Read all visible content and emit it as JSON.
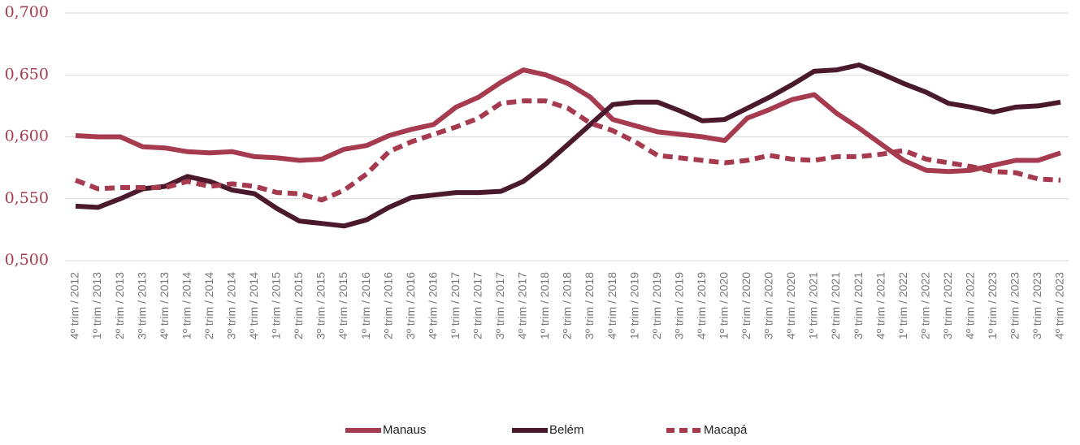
{
  "chart_data": {
    "type": "line",
    "categories": [
      "4º trim / 2012",
      "1º trim / 2013",
      "2º trim / 2013",
      "3º trim / 2013",
      "4º trim / 2013",
      "1º trim / 2014",
      "2º trim / 2014",
      "3º trim / 2014",
      "4º trim / 2014",
      "1º trim / 2015",
      "2º trim / 2015",
      "3º trim / 2015",
      "4º trim / 2015",
      "1º trim / 2016",
      "2º trim / 2016",
      "3º trim / 2016",
      "4º trim / 2016",
      "1º trim / 2017",
      "2º trim / 2017",
      "3º trim / 2017",
      "4º trim / 2017",
      "1º trim / 2018",
      "2º trim / 2018",
      "3º trim / 2018",
      "4º trim / 2018",
      "1º trim / 2019",
      "2º trim / 2019",
      "3º trim / 2019",
      "4º trim / 2019",
      "1º trim / 2020",
      "2º trim / 2020",
      "3º trim / 2020",
      "4º trim / 2020",
      "1º trim / 2021",
      "2º trim / 2021",
      "3º trim / 2021",
      "4º trim / 2021",
      "1º trim / 2022",
      "2º trim / 2022",
      "3º trim / 2022",
      "4º trim / 2022",
      "1º trim / 2023",
      "2º trim / 2023",
      "3º trim / 2023",
      "4º trim / 2023"
    ],
    "series": [
      {
        "name": "Manaus",
        "color": "#a63a4f",
        "style": "solid",
        "values": [
          0.601,
          0.6,
          0.6,
          0.592,
          0.591,
          0.588,
          0.587,
          0.588,
          0.584,
          0.583,
          0.581,
          0.582,
          0.59,
          0.593,
          0.601,
          0.606,
          0.61,
          0.624,
          0.632,
          0.644,
          0.654,
          0.65,
          0.643,
          0.632,
          0.614,
          0.609,
          0.604,
          0.602,
          0.6,
          0.597,
          0.615,
          0.622,
          0.63,
          0.634,
          0.619,
          0.607,
          0.594,
          0.581,
          0.573,
          0.572,
          0.573,
          0.577,
          0.581,
          0.581,
          0.587
        ]
      },
      {
        "name": "Belém",
        "color": "#4a1a2c",
        "style": "solid",
        "values": [
          0.544,
          0.543,
          0.55,
          0.558,
          0.56,
          0.568,
          0.564,
          0.557,
          0.554,
          0.542,
          0.532,
          0.53,
          0.528,
          0.533,
          0.543,
          0.551,
          0.553,
          0.555,
          0.555,
          0.556,
          0.564,
          0.578,
          0.594,
          0.61,
          0.626,
          0.628,
          0.628,
          0.621,
          0.613,
          0.614,
          0.623,
          0.632,
          0.642,
          0.653,
          0.654,
          0.658,
          0.651,
          0.643,
          0.636,
          0.627,
          0.624,
          0.62,
          0.624,
          0.625,
          0.628
        ]
      },
      {
        "name": "Macapá",
        "color": "#a63a4f",
        "style": "dashed",
        "values": [
          0.565,
          0.558,
          0.559,
          0.559,
          0.559,
          0.564,
          0.56,
          0.562,
          0.56,
          0.555,
          0.554,
          0.549,
          0.557,
          0.57,
          0.588,
          0.596,
          0.602,
          0.608,
          0.615,
          0.627,
          0.629,
          0.629,
          0.623,
          0.611,
          0.605,
          0.596,
          0.585,
          0.583,
          0.581,
          0.579,
          0.581,
          0.585,
          0.582,
          0.581,
          0.584,
          0.584,
          0.586,
          0.589,
          0.582,
          0.579,
          0.576,
          0.572,
          0.571,
          0.566,
          0.565
        ]
      }
    ],
    "ylim": [
      0.5,
      0.7
    ],
    "yticks": [
      {
        "value": 0.5,
        "label": "0,500"
      },
      {
        "value": 0.55,
        "label": "0,550"
      },
      {
        "value": 0.6,
        "label": "0,600"
      },
      {
        "value": 0.65,
        "label": "0,650"
      },
      {
        "value": 0.7,
        "label": "0,700"
      }
    ],
    "grid": true,
    "legend": "bottom"
  }
}
